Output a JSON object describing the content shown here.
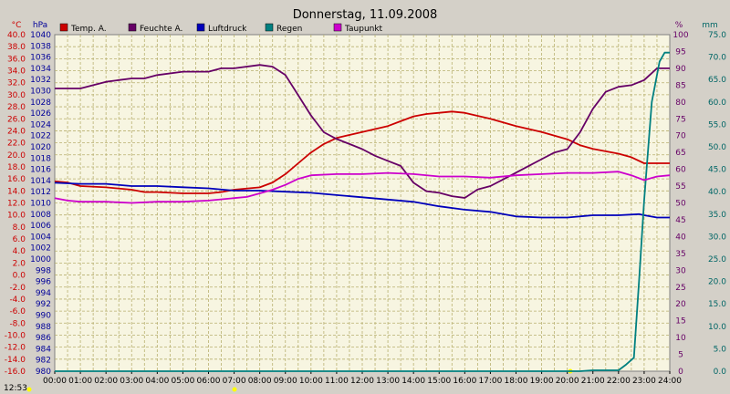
{
  "chart_data": {
    "type": "line",
    "title": "Donnerstag, 11.09.2008",
    "status_time": "12:53",
    "units": {
      "temp": "°C",
      "pressure": "hPa",
      "humidity": "%",
      "rain": "mm"
    },
    "x_labels": [
      "00:00",
      "01:00",
      "02:00",
      "03:00",
      "04:00",
      "05:00",
      "06:00",
      "07:00",
      "08:00",
      "09:00",
      "10:00",
      "11:00",
      "12:00",
      "13:00",
      "14:00",
      "15:00",
      "16:00",
      "17:00",
      "18:00",
      "19:00",
      "20:00",
      "21:00",
      "22:00",
      "23:00",
      "24:00"
    ],
    "xlim": [
      0,
      24
    ],
    "axes": {
      "temp": {
        "min": -16,
        "max": 40,
        "step": 2,
        "color": "#cc0000"
      },
      "pressure": {
        "min": 980,
        "max": 1040,
        "step": 2,
        "color": "#000099"
      },
      "humidity": {
        "min": 0,
        "max": 100,
        "step": 5,
        "color": "#660066"
      },
      "rain": {
        "min": 0,
        "max": 75,
        "step": 5,
        "color": "#006666"
      }
    },
    "series": [
      {
        "name": "Temp. A.",
        "axis": "temp",
        "color": "#cc0000",
        "x": [
          0,
          0.5,
          1,
          2,
          3,
          3.5,
          4,
          5,
          6,
          6.5,
          7,
          8,
          8.5,
          9,
          9.5,
          10,
          10.5,
          11,
          12,
          13,
          13.5,
          14,
          14.5,
          15,
          15.5,
          16,
          17,
          18,
          19,
          20,
          20.5,
          21,
          22,
          22.5,
          23,
          23.5,
          24
        ],
        "y": [
          15.6,
          15.4,
          14.8,
          14.6,
          14.2,
          13.8,
          13.8,
          13.6,
          13.6,
          13.8,
          14.2,
          14.6,
          15.4,
          16.8,
          18.6,
          20.4,
          21.8,
          22.8,
          23.8,
          24.8,
          25.6,
          26.4,
          26.8,
          27.0,
          27.2,
          27.0,
          26.0,
          24.8,
          23.8,
          22.6,
          21.6,
          21.0,
          20.2,
          19.6,
          18.6,
          18.6,
          18.6
        ]
      },
      {
        "name": "Feuchte A.",
        "axis": "humidity",
        "color": "#660066",
        "x": [
          0,
          1,
          1.5,
          2,
          2.5,
          3,
          3.5,
          4,
          5,
          6,
          6.5,
          7,
          8,
          8.5,
          9,
          9.5,
          10,
          10.5,
          11,
          11.5,
          12,
          12.5,
          13,
          13.5,
          14,
          14.5,
          15,
          15.5,
          16,
          16.5,
          17,
          17.5,
          18,
          18.5,
          19,
          19.5,
          20,
          20.5,
          21,
          21.5,
          22,
          22.5,
          23,
          23.5,
          24
        ],
        "y": [
          84,
          84,
          85,
          86,
          86.5,
          87,
          87,
          88,
          89,
          89,
          90,
          90,
          91,
          90.5,
          88,
          82,
          76,
          71,
          69,
          67.5,
          66,
          64,
          62.5,
          61,
          56,
          53.5,
          53,
          52,
          51.5,
          54,
          55,
          57,
          59,
          61,
          63,
          65,
          66,
          71,
          78,
          83,
          84.5,
          85,
          86.5,
          90,
          90
        ]
      },
      {
        "name": "Luftdruck",
        "axis": "pressure",
        "color": "#0000bb",
        "x": [
          0,
          1,
          2,
          3,
          4,
          5,
          6,
          7,
          8,
          9,
          10,
          11,
          12,
          13,
          14,
          15,
          16,
          17,
          18,
          19,
          20,
          21,
          22,
          22.8,
          23,
          23.5,
          24
        ],
        "y": [
          1013.6,
          1013.4,
          1013.4,
          1013.0,
          1013.0,
          1012.8,
          1012.6,
          1012.2,
          1012.2,
          1012.0,
          1011.8,
          1011.4,
          1011.0,
          1010.6,
          1010.2,
          1009.4,
          1008.8,
          1008.4,
          1007.6,
          1007.4,
          1007.4,
          1007.8,
          1007.8,
          1008.0,
          1007.8,
          1007.4,
          1007.4
        ]
      },
      {
        "name": "Regen",
        "axis": "rain",
        "color": "#008080",
        "x": [
          0,
          20.5,
          21,
          22,
          22.3,
          22.6,
          22.8,
          23.0,
          23.3,
          23.6,
          23.8,
          24
        ],
        "y": [
          0,
          0,
          0.2,
          0.2,
          1.5,
          3,
          20,
          38,
          60,
          69,
          71,
          71
        ]
      },
      {
        "name": "Taupunkt",
        "axis": "temp",
        "color": "#cc00cc",
        "x": [
          0,
          0.5,
          1,
          2,
          3,
          4,
          5,
          6,
          7,
          7.5,
          8,
          8.5,
          9,
          9.5,
          10,
          11,
          12,
          13,
          14,
          15,
          16,
          17,
          18,
          19,
          20,
          21,
          22,
          22.5,
          23,
          23.5,
          24
        ],
        "y": [
          12.8,
          12.4,
          12.2,
          12.2,
          12.0,
          12.2,
          12.2,
          12.4,
          12.8,
          13.0,
          13.6,
          14.2,
          15.0,
          16.0,
          16.6,
          16.8,
          16.8,
          17.0,
          16.8,
          16.4,
          16.4,
          16.2,
          16.6,
          16.8,
          17.0,
          17.0,
          17.2,
          16.6,
          15.8,
          16.4,
          16.6
        ]
      }
    ]
  }
}
